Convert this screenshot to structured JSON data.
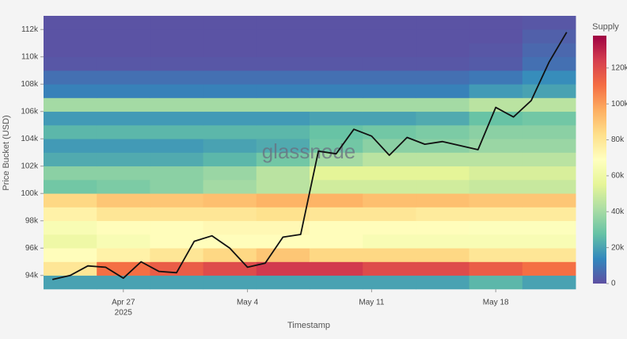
{
  "chart_data": {
    "type": "heatmap",
    "watermark": "glassnode",
    "x_label": "Timestamp",
    "y_label": "Price Bucket (USD)",
    "colorbar_title": "Supply",
    "colorscale": [
      "#5e4fa2",
      "#3288bd",
      "#66c2a5",
      "#abdda4",
      "#e6f598",
      "#ffffbf",
      "#fee08b",
      "#fdae61",
      "#f46d43",
      "#d53e4f",
      "#9e0142"
    ],
    "zlim": [
      0,
      138000
    ],
    "zticks": [
      0,
      {
        "value": 20000,
        "label": "20k"
      },
      {
        "value": 40000,
        "label": "40k"
      },
      {
        "value": 60000,
        "label": "60k"
      },
      {
        "value": 80000,
        "label": "80k"
      },
      {
        "value": 100000,
        "label": "100k"
      },
      {
        "value": 120000,
        "label": "120k"
      }
    ],
    "xlim": [
      "2025-04-22T12:00:00Z",
      "2025-05-22T12:00:00Z"
    ],
    "xticks": [
      {
        "value": "2025-04-27",
        "label": "Apr 27",
        "sublabel": "2025"
      },
      {
        "value": "2025-05-04",
        "label": "May 4"
      },
      {
        "value": "2025-05-11",
        "label": "May 11"
      },
      {
        "value": "2025-05-18",
        "label": "May 18"
      }
    ],
    "ylim": [
      93000,
      113000
    ],
    "yticks": [
      {
        "value": 94000,
        "label": "94k"
      },
      {
        "value": 96000,
        "label": "96k"
      },
      {
        "value": 98000,
        "label": "98k"
      },
      {
        "value": 100000,
        "label": "100k"
      },
      {
        "value": 102000,
        "label": "102k"
      },
      {
        "value": 104000,
        "label": "104k"
      },
      {
        "value": 106000,
        "label": "106k"
      },
      {
        "value": 108000,
        "label": "108k"
      },
      {
        "value": 110000,
        "label": "110k"
      },
      {
        "value": 112000,
        "label": "112k"
      }
    ],
    "x": [
      "2025-04-24",
      "2025-04-27",
      "2025-04-30",
      "2025-05-03",
      "2025-05-06",
      "2025-05-09",
      "2025-05-12",
      "2025-05-15",
      "2025-05-18",
      "2025-05-21"
    ],
    "y": [
      93000,
      94000,
      95000,
      96000,
      97000,
      98000,
      99000,
      100000,
      101000,
      102000,
      103000,
      104000,
      105000,
      106000,
      107000,
      108000,
      109000,
      110000,
      111000,
      112000
    ],
    "z": [
      [
        20000,
        20000,
        20000,
        20000,
        20000,
        20000,
        20000,
        20000,
        25000,
        20000
      ],
      [
        80000,
        110000,
        115000,
        120000,
        125000,
        125000,
        120000,
        120000,
        115000,
        110000
      ],
      [
        70000,
        75000,
        80000,
        85000,
        90000,
        85000,
        85000,
        85000,
        80000,
        80000
      ],
      [
        60000,
        65000,
        70000,
        70000,
        70000,
        70000,
        65000,
        65000,
        65000,
        65000
      ],
      [
        65000,
        70000,
        70000,
        72000,
        72000,
        70000,
        70000,
        70000,
        68000,
        68000
      ],
      [
        75000,
        80000,
        80000,
        80000,
        82000,
        80000,
        80000,
        78000,
        78000,
        78000
      ],
      [
        85000,
        90000,
        90000,
        92000,
        95000,
        95000,
        92000,
        92000,
        90000,
        90000
      ],
      [
        30000,
        32000,
        35000,
        40000,
        45000,
        50000,
        50000,
        50000,
        48000,
        48000
      ],
      [
        35000,
        35000,
        35000,
        38000,
        45000,
        55000,
        55000,
        55000,
        52000,
        52000
      ],
      [
        22000,
        22000,
        22000,
        25000,
        30000,
        40000,
        45000,
        45000,
        45000,
        45000
      ],
      [
        18000,
        18000,
        18000,
        20000,
        22000,
        30000,
        35000,
        35000,
        38000,
        38000
      ],
      [
        25000,
        25000,
        25000,
        25000,
        25000,
        28000,
        30000,
        32000,
        35000,
        35000
      ],
      [
        18000,
        18000,
        18000,
        18000,
        18000,
        20000,
        20000,
        22000,
        28000,
        30000
      ],
      [
        40000,
        40000,
        40000,
        40000,
        40000,
        40000,
        40000,
        40000,
        45000,
        45000
      ],
      [
        12000,
        12000,
        12000,
        12000,
        12000,
        12000,
        12000,
        12000,
        18000,
        20000
      ],
      [
        8000,
        8000,
        8000,
        8000,
        8000,
        8000,
        8000,
        8000,
        10000,
        15000
      ],
      [
        2000,
        2000,
        2000,
        2000,
        2000,
        2000,
        2000,
        2000,
        3000,
        8000
      ],
      [
        1000,
        1000,
        1000,
        1000,
        1000,
        1000,
        1000,
        1000,
        2000,
        6000
      ],
      [
        1000,
        1000,
        1000,
        1000,
        1000,
        1000,
        1000,
        1000,
        1000,
        4000
      ],
      [
        1000,
        1000,
        1000,
        1000,
        1000,
        1000,
        1000,
        1000,
        1000,
        2000
      ]
    ],
    "line": {
      "type": "line",
      "color": "#111111",
      "x": [
        "2025-04-23",
        "2025-04-24",
        "2025-04-25",
        "2025-04-26",
        "2025-04-27",
        "2025-04-28",
        "2025-04-29",
        "2025-04-30",
        "2025-05-01",
        "2025-05-02",
        "2025-05-03",
        "2025-05-04",
        "2025-05-05",
        "2025-05-06",
        "2025-05-07",
        "2025-05-08",
        "2025-05-09",
        "2025-05-10",
        "2025-05-11",
        "2025-05-12",
        "2025-05-13",
        "2025-05-14",
        "2025-05-15",
        "2025-05-16",
        "2025-05-17",
        "2025-05-18",
        "2025-05-19",
        "2025-05-20",
        "2025-05-21",
        "2025-05-22"
      ],
      "values": [
        93700,
        94000,
        94700,
        94600,
        93800,
        95000,
        94300,
        94200,
        96500,
        96900,
        96000,
        94600,
        94900,
        96800,
        97000,
        103100,
        102900,
        104700,
        104200,
        102800,
        104100,
        103600,
        103800,
        103500,
        103200,
        106300,
        105600,
        106800,
        109600,
        111800
      ]
    }
  }
}
